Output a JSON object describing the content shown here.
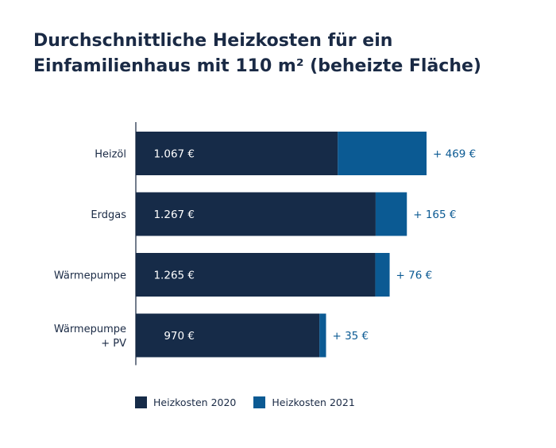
{
  "chart_data": {
    "type": "bar",
    "orientation": "horizontal",
    "stacked": true,
    "title_lines": [
      "Durchschnittliche Heizkosten für ein",
      "Einfamilienhaus mit 110 m² (beheizte Fläche)"
    ],
    "categories": [
      [
        "Heizöl"
      ],
      [
        "Erdgas"
      ],
      [
        "Wärmepumpe"
      ],
      [
        "Wärmepumpe",
        "+ PV"
      ]
    ],
    "series": [
      {
        "name": "Heizkosten 2020",
        "color": "#162b48",
        "values": [
          1067,
          1267,
          1265,
          970
        ],
        "labels": [
          "1.067 €",
          "1.267 €",
          "1.265 €",
          "970 €"
        ]
      },
      {
        "name": "Heizkosten 2021",
        "color": "#0b5a93",
        "values": [
          469,
          165,
          76,
          35
        ],
        "labels": [
          "+ 469 €",
          "+ 165 €",
          "+ 76 €",
          "+ 35 €"
        ]
      }
    ],
    "xlim": [
      0,
      1600
    ],
    "grid": false,
    "legend_position": "bottom-left"
  }
}
